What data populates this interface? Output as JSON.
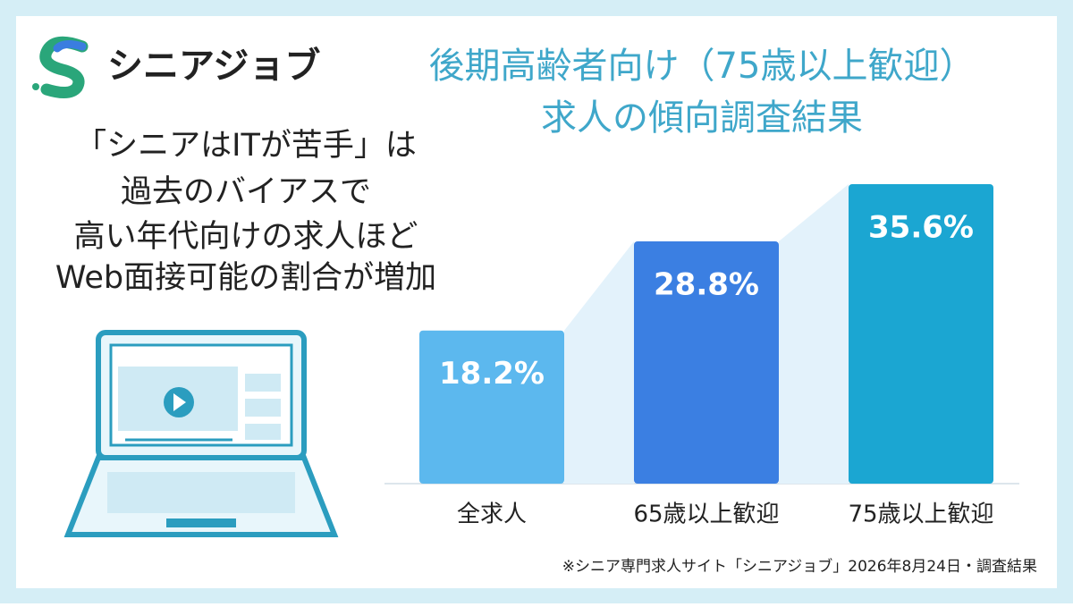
{
  "logo": "シニアジョブ",
  "headline": [
    "「シニアはITが苦手」は",
    "過去のバイアスで",
    "高い年代向けの求人ほど",
    "Web面接可能の割合が増加"
  ],
  "footnote": "※シニア専門求人サイト「シニアジョブ」2026年8月24日・調査結果",
  "chart_data": {
    "type": "bar",
    "title": "後期高齢者向け（75歳以上歓迎）",
    "subtitle": "求人の傾向調査結果",
    "categories": [
      "全求人",
      "65歳以上歓迎",
      "75歳以上歓迎"
    ],
    "values": [
      18.2,
      28.8,
      35.6
    ],
    "value_labels": [
      "18.2%",
      "28.8%",
      "35.6%"
    ],
    "colors": [
      "#5cb8ee",
      "#3b7fe2",
      "#1ba6d2"
    ]
  }
}
